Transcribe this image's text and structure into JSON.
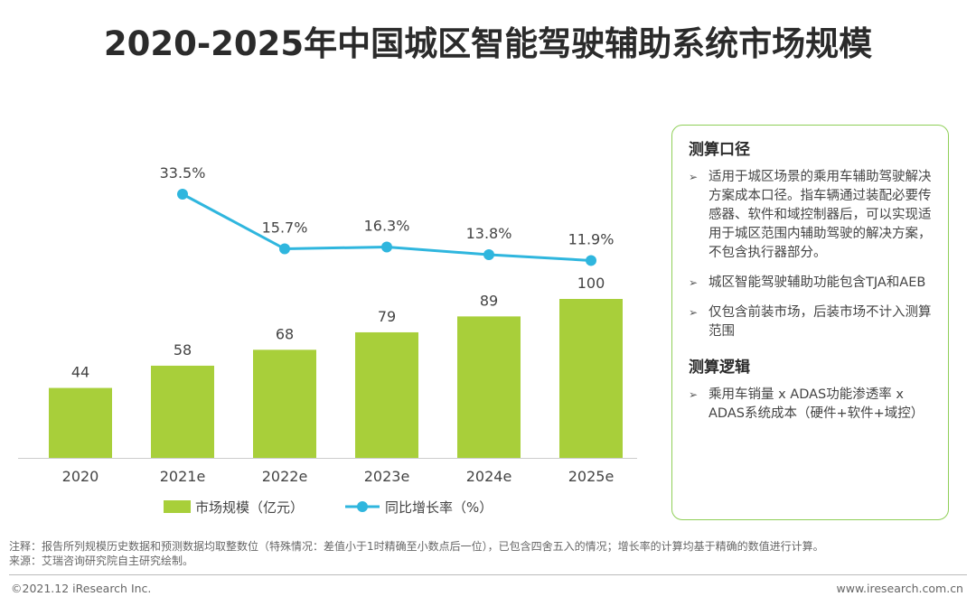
{
  "title": "2020-2025年中国城区智能驾驶辅助系统市场规模",
  "chart_data": {
    "type": "bar+line",
    "categories": [
      "2020",
      "2021e",
      "2022e",
      "2023e",
      "2024e",
      "2025e"
    ],
    "series": [
      {
        "name": "市场规模（亿元）",
        "type": "bar",
        "values": [
          44,
          58,
          68,
          79,
          89,
          100
        ],
        "labels": [
          "44",
          "58",
          "68",
          "79",
          "89",
          "100"
        ]
      },
      {
        "name": "同比增长率（%）",
        "type": "line",
        "values": [
          null,
          33.5,
          15.7,
          16.3,
          13.8,
          11.9
        ],
        "labels": [
          "",
          "33.5%",
          "15.7%",
          "16.3%",
          "13.8%",
          "11.9%"
        ]
      }
    ],
    "bar_color": "#a8cf3a",
    "line_color": "#2fb6de",
    "legend": [
      "市场规模（亿元）",
      "同比增长率（%）"
    ]
  },
  "panel": {
    "heading1": "测算口径",
    "items1": [
      "适用于城区场景的乘用车辅助驾驶解决方案成本口径。指车辆通过装配必要传感器、软件和域控制器后，可以实现适用于城区范围内辅助驾驶的解决方案，不包含执行器部分。",
      "城区智能驾驶辅助功能包含TJA和AEB",
      "仅包含前装市场，后装市场不计入测算范围"
    ],
    "heading2": "测算逻辑",
    "items2": [
      "乘用车销量 x ADAS功能渗透率 x ADAS系统成本（硬件+软件+域控）"
    ]
  },
  "notes": {
    "note": "注释：报告所列规模历史数据和预测数据均取整数位（特殊情况：差值小于1时精确至小数点后一位），已包含四舍五入的情况；增长率的计算均基于精确的数值进行计算。",
    "source": "来源：艾瑞咨询研究院自主研究绘制。"
  },
  "footer": {
    "copyright": "©2021.12 iResearch Inc.",
    "website": "www.iresearch.com.cn"
  }
}
